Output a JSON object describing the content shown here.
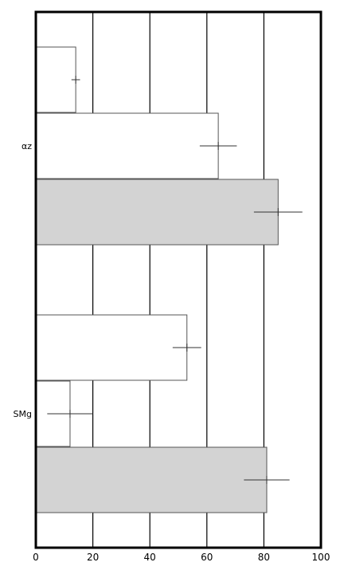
{
  "chart_data": {
    "type": "bar",
    "orientation": "horizontal",
    "title": "",
    "xlabel": "",
    "ylabel": "",
    "categories": [
      "αz",
      "SMg"
    ],
    "xlim": [
      0,
      100
    ],
    "xticks": [
      0,
      20,
      40,
      60,
      80,
      100
    ],
    "grid": "vertical",
    "series": [
      {
        "fill": "#ffffff",
        "values": [
          14,
          53
        ],
        "errors": [
          1.5,
          5
        ]
      },
      {
        "fill": "#ffffff",
        "values": [
          64,
          12
        ],
        "errors": [
          6.5,
          8
        ]
      },
      {
        "fill": "#d3d3d3",
        "values": [
          85,
          81
        ],
        "errors": [
          8.5,
          8
        ]
      }
    ]
  }
}
